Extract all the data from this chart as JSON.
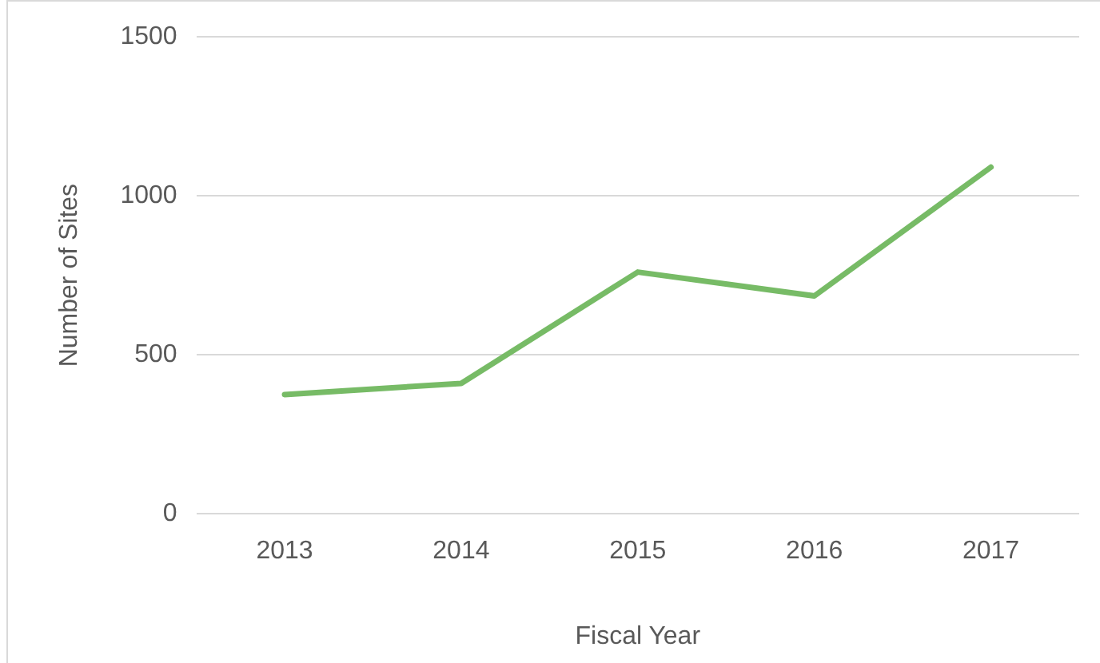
{
  "chart_data": {
    "type": "line",
    "xlabel": "Fiscal Year",
    "ylabel": "Number of Sites",
    "categories": [
      "2013",
      "2014",
      "2015",
      "2016",
      "2017"
    ],
    "series": [
      {
        "color": "#77bb66",
        "values": [
          375,
          410,
          760,
          685,
          1090
        ]
      }
    ],
    "ylim": [
      0,
      1500
    ],
    "yticks": [
      0,
      500,
      1000,
      1500
    ],
    "grid": "y",
    "legend": false,
    "marker": "none",
    "line_style": "solid"
  }
}
